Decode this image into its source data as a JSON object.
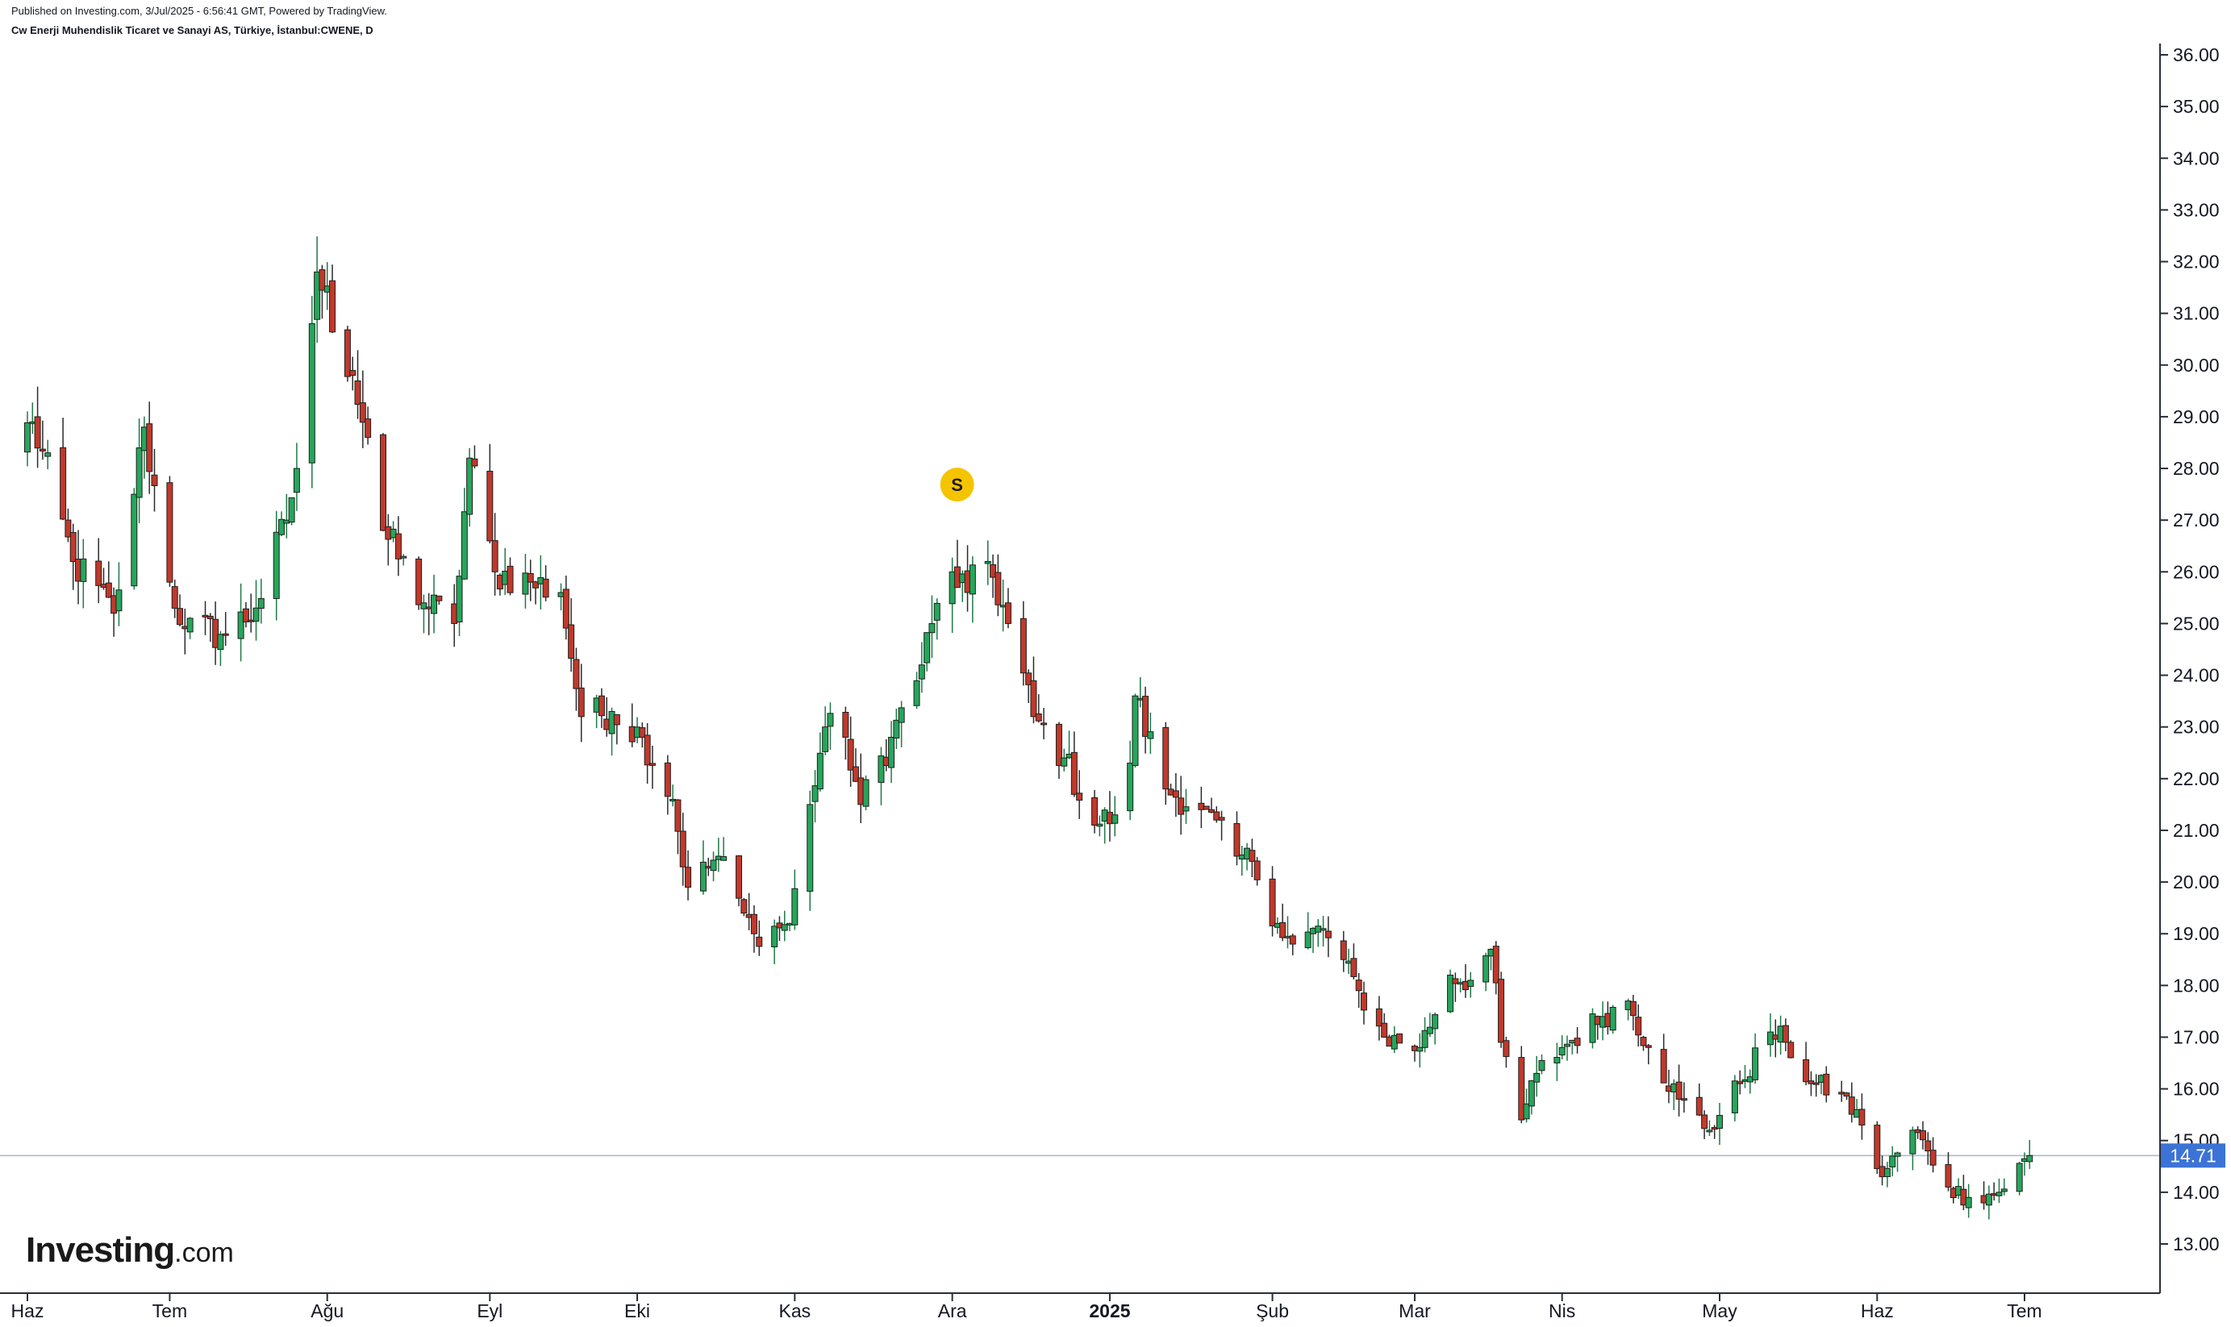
{
  "header": {
    "published": "Published on Investing.com, 3/Jul/2025 - 6:56:41 GMT, Powered by TradingView.",
    "symbol": "Cw Enerji Muhendislik Ticaret ve Sanayi AS, Türkiye, İstanbul:CWENE, D"
  },
  "logo": {
    "brand": "Investing",
    "suffix": ".com"
  },
  "colors": {
    "up": "#26a65b",
    "down": "#c0392b",
    "last_price_bg": "#3c73d6",
    "price_line": "#9fb8d6",
    "marker": "#f5c400"
  },
  "chart_data": {
    "type": "candlestick",
    "y_axis": {
      "side": "right",
      "ylim": [
        12.0,
        36.5
      ],
      "ticks": [
        "13.00",
        "14.00",
        "15.00",
        "16.00",
        "17.00",
        "18.00",
        "19.00",
        "20.00",
        "21.00",
        "22.00",
        "23.00",
        "24.00",
        "25.00",
        "26.00",
        "27.00",
        "28.00",
        "29.00",
        "30.00",
        "31.00",
        "32.00",
        "33.00",
        "34.00",
        "35.00",
        "36.00"
      ]
    },
    "x_axis": {
      "ticks": [
        {
          "label": "Haz",
          "date": "2024-06-03"
        },
        {
          "label": "Tem",
          "date": "2024-07-01"
        },
        {
          "label": "Ağu",
          "date": "2024-08-01"
        },
        {
          "label": "Eyl",
          "date": "2024-09-02"
        },
        {
          "label": "Eki",
          "date": "2024-10-01"
        },
        {
          "label": "Kas",
          "date": "2024-11-01"
        },
        {
          "label": "Ara",
          "date": "2024-12-02"
        },
        {
          "label": "2025",
          "date": "2025-01-02",
          "bold": true
        },
        {
          "label": "Şub",
          "date": "2025-02-03"
        },
        {
          "label": "Mar",
          "date": "2025-03-03"
        },
        {
          "label": "Nis",
          "date": "2025-04-01"
        },
        {
          "label": "May",
          "date": "2025-05-02"
        },
        {
          "label": "Haz",
          "date": "2025-06-02"
        },
        {
          "label": "Tem",
          "date": "2025-07-01"
        }
      ]
    },
    "last_price": "14.71",
    "markers": [
      {
        "label": "S",
        "date": "2024-12-02",
        "price": 27.5
      }
    ],
    "anchors": [
      {
        "date": "2024-05-31",
        "close": 28.3
      },
      {
        "date": "2024-06-04",
        "close": 28.9
      },
      {
        "date": "2024-06-12",
        "close": 26.2
      },
      {
        "date": "2024-06-20",
        "close": 25.2
      },
      {
        "date": "2024-06-24",
        "close": 27.5
      },
      {
        "date": "2024-06-26",
        "close": 28.8
      },
      {
        "date": "2024-07-01",
        "close": 25.8
      },
      {
        "date": "2024-07-04",
        "close": 24.9
      },
      {
        "date": "2024-07-12",
        "close": 24.8
      },
      {
        "date": "2024-07-18",
        "close": 25.3
      },
      {
        "date": "2024-07-24",
        "close": 27.0
      },
      {
        "date": "2024-07-26",
        "close": 28.0
      },
      {
        "date": "2024-07-29",
        "close": 30.8
      },
      {
        "date": "2024-07-30",
        "close": 31.8
      },
      {
        "date": "2024-08-06",
        "close": 29.8
      },
      {
        "date": "2024-08-09",
        "close": 28.6
      },
      {
        "date": "2024-08-12",
        "close": 26.8
      },
      {
        "date": "2024-08-20",
        "close": 25.4
      },
      {
        "date": "2024-08-26",
        "close": 25.0
      },
      {
        "date": "2024-08-29",
        "close": 28.2
      },
      {
        "date": "2024-09-03",
        "close": 26.0
      },
      {
        "date": "2024-09-10",
        "close": 25.8
      },
      {
        "date": "2024-09-16",
        "close": 25.6
      },
      {
        "date": "2024-09-20",
        "close": 23.2
      },
      {
        "date": "2024-09-26",
        "close": 23.3
      },
      {
        "date": "2024-10-02",
        "close": 22.8
      },
      {
        "date": "2024-10-08",
        "close": 21.6
      },
      {
        "date": "2024-10-11",
        "close": 19.9
      },
      {
        "date": "2024-10-17",
        "close": 20.5
      },
      {
        "date": "2024-10-22",
        "close": 19.4
      },
      {
        "date": "2024-10-24",
        "close": 19.0
      },
      {
        "date": "2024-10-31",
        "close": 19.2
      },
      {
        "date": "2024-11-04",
        "close": 21.5
      },
      {
        "date": "2024-11-07",
        "close": 23.0
      },
      {
        "date": "2024-11-11",
        "close": 22.8
      },
      {
        "date": "2024-11-14",
        "close": 21.5
      },
      {
        "date": "2024-11-20",
        "close": 22.8
      },
      {
        "date": "2024-11-26",
        "close": 24.2
      },
      {
        "date": "2024-11-28",
        "close": 25.0
      },
      {
        "date": "2024-12-02",
        "close": 26.0
      },
      {
        "date": "2024-12-05",
        "close": 25.6
      },
      {
        "date": "2024-12-09",
        "close": 26.2
      },
      {
        "date": "2024-12-13",
        "close": 25.0
      },
      {
        "date": "2024-12-18",
        "close": 23.2
      },
      {
        "date": "2024-12-24",
        "close": 22.4
      },
      {
        "date": "2024-12-30",
        "close": 21.1
      },
      {
        "date": "2025-01-03",
        "close": 21.3
      },
      {
        "date": "2025-01-06",
        "close": 22.3
      },
      {
        "date": "2025-01-07",
        "close": 23.6
      },
      {
        "date": "2025-01-13",
        "close": 21.8
      },
      {
        "date": "2025-01-20",
        "close": 21.4
      },
      {
        "date": "2025-01-27",
        "close": 20.5
      },
      {
        "date": "2025-01-30",
        "close": 20.4
      },
      {
        "date": "2025-02-04",
        "close": 19.2
      },
      {
        "date": "2025-02-07",
        "close": 18.8
      },
      {
        "date": "2025-02-13",
        "close": 19.1
      },
      {
        "date": "2025-02-20",
        "close": 17.9
      },
      {
        "date": "2025-02-25",
        "close": 17.0
      },
      {
        "date": "2025-03-04",
        "close": 16.8
      },
      {
        "date": "2025-03-10",
        "close": 18.2
      },
      {
        "date": "2025-03-14",
        "close": 18.1
      },
      {
        "date": "2025-03-18",
        "close": 18.7
      },
      {
        "date": "2025-03-20",
        "close": 16.9
      },
      {
        "date": "2025-03-24",
        "close": 15.4
      },
      {
        "date": "2025-03-27",
        "close": 16.3
      },
      {
        "date": "2025-04-01",
        "close": 16.8
      },
      {
        "date": "2025-04-09",
        "close": 17.4
      },
      {
        "date": "2025-04-14",
        "close": 17.7
      },
      {
        "date": "2025-04-18",
        "close": 16.8
      },
      {
        "date": "2025-04-24",
        "close": 15.8
      },
      {
        "date": "2025-04-30",
        "close": 15.2
      },
      {
        "date": "2025-05-06",
        "close": 16.1
      },
      {
        "date": "2025-05-12",
        "close": 17.1
      },
      {
        "date": "2025-05-15",
        "close": 16.9
      },
      {
        "date": "2025-05-20",
        "close": 16.1
      },
      {
        "date": "2025-05-26",
        "close": 15.9
      },
      {
        "date": "2025-05-30",
        "close": 15.3
      },
      {
        "date": "2025-06-03",
        "close": 14.3
      },
      {
        "date": "2025-06-09",
        "close": 15.2
      },
      {
        "date": "2025-06-12",
        "close": 14.8
      },
      {
        "date": "2025-06-16",
        "close": 14.1
      },
      {
        "date": "2025-06-20",
        "close": 13.9
      },
      {
        "date": "2025-06-26",
        "close": 14.0
      },
      {
        "date": "2025-07-02",
        "close": 14.71
      }
    ]
  }
}
